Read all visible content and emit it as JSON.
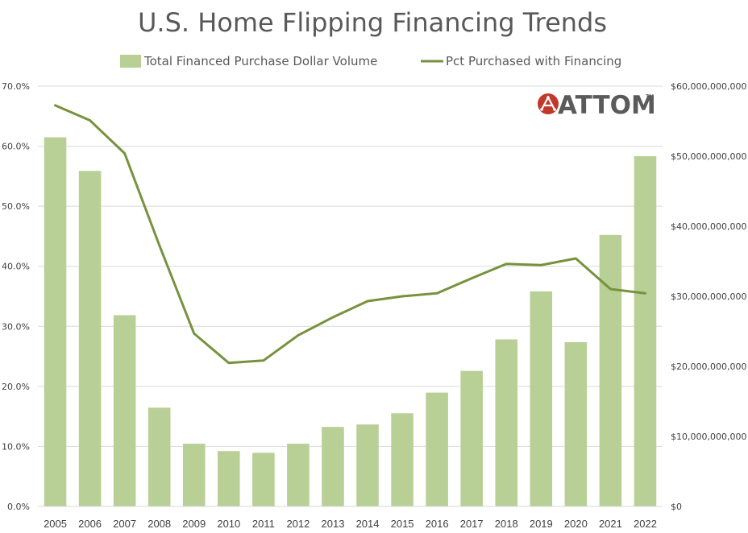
{
  "chart_data": {
    "type": "bar+line",
    "title": "U.S. Home Flipping Financing Trends",
    "categories": [
      "2005",
      "2006",
      "2007",
      "2008",
      "2009",
      "2010",
      "2011",
      "2012",
      "2013",
      "2014",
      "2015",
      "2016",
      "2017",
      "2018",
      "2019",
      "2020",
      "2021",
      "2022"
    ],
    "series": [
      {
        "name": "Total Financed Purchase Dollar Volume",
        "type": "bar",
        "axis": "right",
        "values": [
          52700000000,
          47900000000,
          27300000000,
          14100000000,
          8950000000,
          7900000000,
          7650000000,
          8950000000,
          11350000000,
          11700000000,
          13300000000,
          16250000000,
          19350000000,
          23850000000,
          30700000000,
          23450000000,
          38750000000,
          50000000000
        ]
      },
      {
        "name": "Pct Purchased with Financing",
        "type": "line",
        "axis": "left",
        "values": [
          0.668,
          0.643,
          0.588,
          0.435,
          0.288,
          0.239,
          0.243,
          0.285,
          0.315,
          0.342,
          0.35,
          0.355,
          0.38,
          0.404,
          0.402,
          0.413,
          0.362,
          0.355
        ]
      }
    ],
    "y_left": {
      "min": 0,
      "max": 0.7,
      "ticks": [
        "0.0%",
        "10.0%",
        "20.0%",
        "30.0%",
        "40.0%",
        "50.0%",
        "60.0%",
        "70.0%"
      ]
    },
    "y_right": {
      "min": 0,
      "max": 60000000000,
      "ticks": [
        "$0",
        "$10,000,000,000",
        "$20,000,000,000",
        "$30,000,000,000",
        "$40,000,000,000",
        "$50,000,000,000",
        "$60,000,000,000"
      ]
    },
    "legend_position": "top",
    "grid": true,
    "colors": {
      "bar": "#b8cf96",
      "line": "#76933c",
      "grid": "#d9d9d9"
    }
  },
  "logo": {
    "text": "ATTOM",
    "tm": "TM",
    "icon": "attom-logo-icon",
    "color": "#c0392b"
  }
}
